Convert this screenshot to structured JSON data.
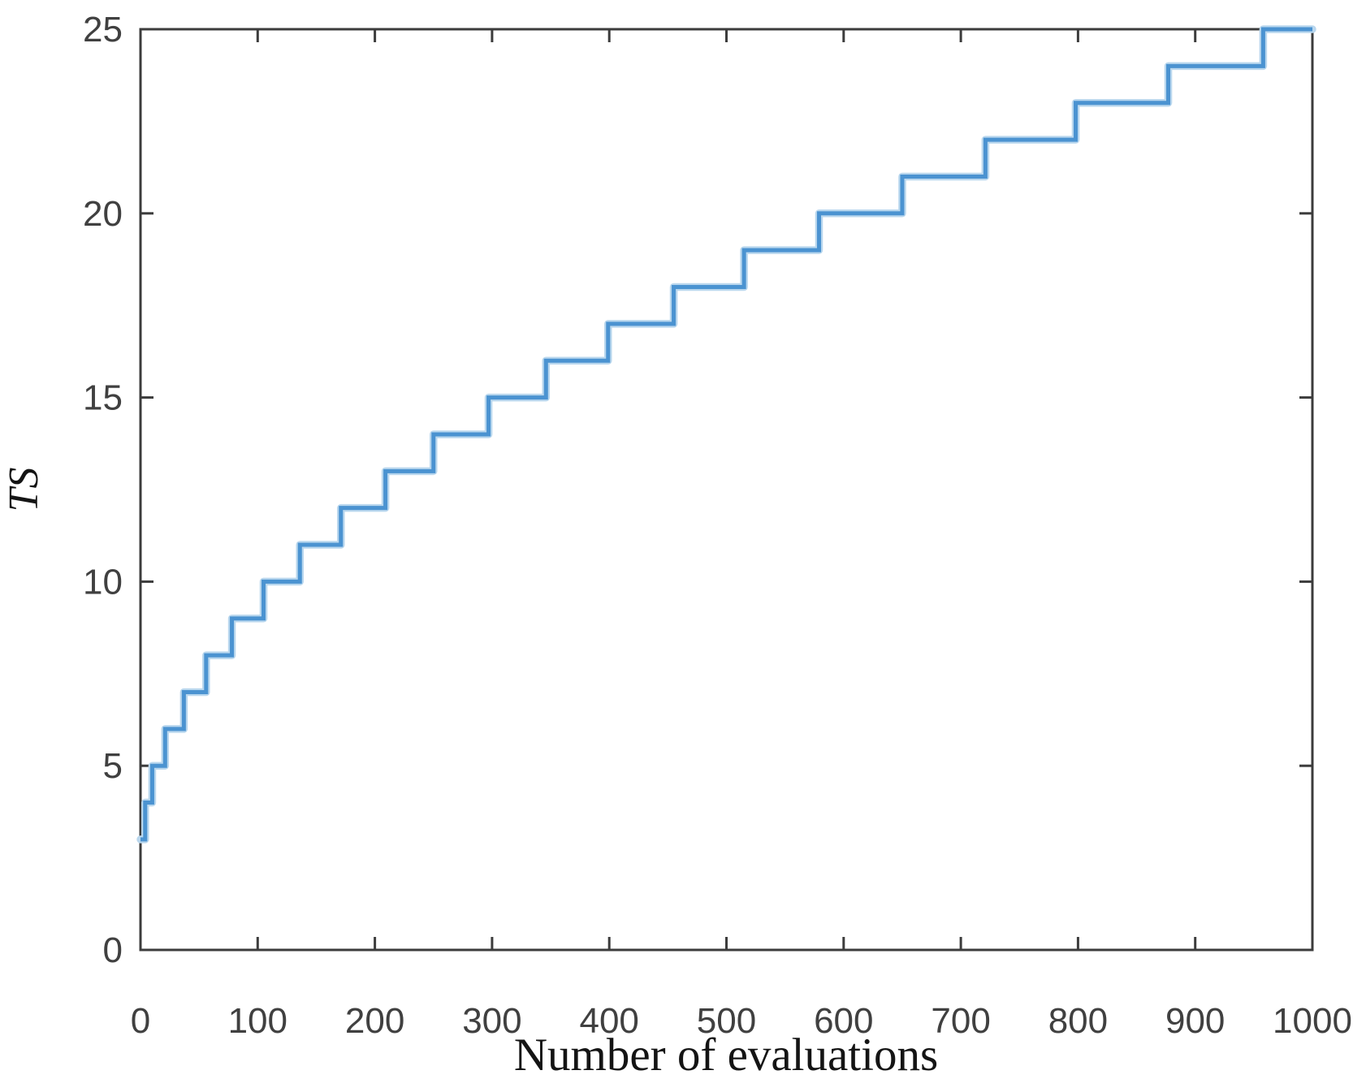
{
  "figure": {
    "background": "#ffffff"
  },
  "chart_data": {
    "type": "line",
    "subtype": "step-post",
    "title": "",
    "xlabel": "Number of evaluations",
    "ylabel": "TS",
    "xlim": [
      0,
      1000
    ],
    "ylim": [
      0,
      25
    ],
    "xticks": [
      0,
      100,
      200,
      300,
      400,
      500,
      600,
      700,
      800,
      900,
      1000
    ],
    "yticks": [
      0,
      5,
      10,
      15,
      20,
      25
    ],
    "grid": false,
    "legend": null,
    "box": true,
    "line_color": "#4B93D1",
    "line_halo_color": "#B9D7EE",
    "axis_color": "#3C3C3C",
    "tick_label_color": "#404040",
    "series": [
      {
        "name": "TS",
        "points": [
          {
            "x": 0,
            "y": 3
          },
          {
            "x": 4,
            "y": 4
          },
          {
            "x": 10,
            "y": 5
          },
          {
            "x": 21,
            "y": 6
          },
          {
            "x": 37,
            "y": 7
          },
          {
            "x": 56,
            "y": 8
          },
          {
            "x": 78,
            "y": 9
          },
          {
            "x": 105,
            "y": 10
          },
          {
            "x": 136,
            "y": 11
          },
          {
            "x": 171,
            "y": 12
          },
          {
            "x": 209,
            "y": 13
          },
          {
            "x": 250,
            "y": 14
          },
          {
            "x": 297,
            "y": 15
          },
          {
            "x": 346,
            "y": 16
          },
          {
            "x": 399,
            "y": 17
          },
          {
            "x": 455,
            "y": 18
          },
          {
            "x": 515,
            "y": 19
          },
          {
            "x": 579,
            "y": 20
          },
          {
            "x": 650,
            "y": 21
          },
          {
            "x": 721,
            "y": 22
          },
          {
            "x": 798,
            "y": 23
          },
          {
            "x": 877,
            "y": 24
          },
          {
            "x": 958,
            "y": 25
          }
        ],
        "end_x": 1000
      }
    ]
  }
}
